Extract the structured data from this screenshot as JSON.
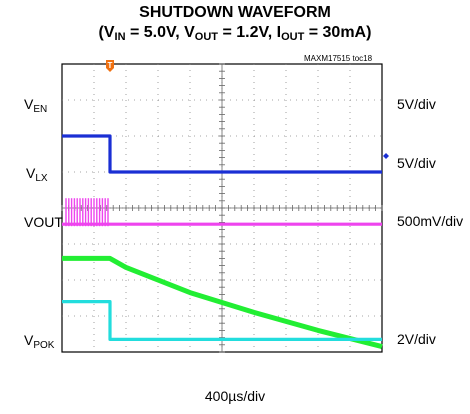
{
  "chart_data": {
    "type": "line",
    "title": "SHUTDOWN WAVEFORM",
    "subtitle": {
      "vin_label": "V",
      "vin_sub": "IN",
      "vin_val": " = 5.0V, ",
      "vout_label": "V",
      "vout_sub": "OUT",
      "vout_val": " = 1.2V, ",
      "iout_label": "I",
      "iout_sub": "OUT",
      "iout_val": " = 30mA)",
      "open": "("
    },
    "figure_id": "MAXM17515 toc18",
    "x_scale": "400µs/div",
    "divisions": {
      "x": 10,
      "y": 8
    },
    "trigger_marker": "T",
    "channels": [
      {
        "name_main": "V",
        "name_sub": "EN",
        "scale": "5V/div",
        "color": "#1a2fd4",
        "points": [
          [
            0,
            6.0
          ],
          [
            1.5,
            6.0
          ],
          [
            1.5,
            5.0
          ],
          [
            10,
            5.0
          ]
        ]
      },
      {
        "name_main": "V",
        "name_sub": "LX",
        "scale": "5V/div",
        "color": "#ee44ee",
        "points": [
          [
            0,
            3.55
          ],
          [
            1.5,
            3.55
          ],
          [
            1.5,
            3.55
          ],
          [
            10,
            3.55
          ]
        ],
        "switching_until": 1.5
      },
      {
        "name_main": "VOUT",
        "name_sub": "",
        "scale": "500mV/div",
        "color": "#22ee33",
        "points": [
          [
            0,
            2.6
          ],
          [
            1.5,
            2.6
          ],
          [
            2.0,
            2.35
          ],
          [
            4.0,
            1.65
          ],
          [
            6.0,
            1.1
          ],
          [
            8.0,
            0.6
          ],
          [
            10,
            0.15
          ]
        ]
      },
      {
        "name_main": "V",
        "name_sub": "POK",
        "scale": "2V/div",
        "color": "#22dddd",
        "points": [
          [
            0,
            1.4
          ],
          [
            1.5,
            1.4
          ],
          [
            1.5,
            0.35
          ],
          [
            10,
            0.35
          ]
        ]
      }
    ]
  }
}
